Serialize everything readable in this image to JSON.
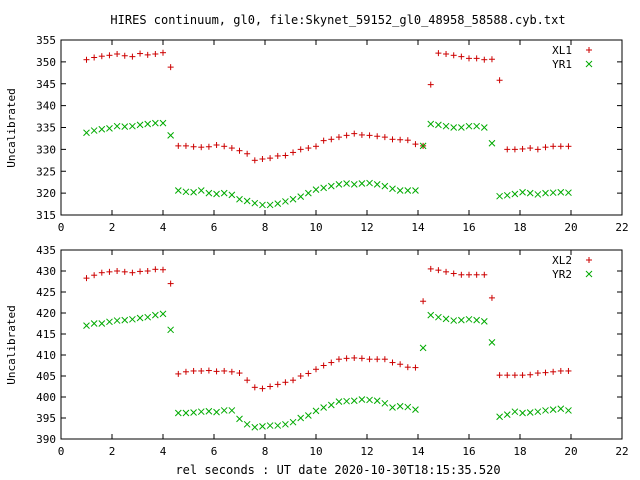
{
  "title": "HIRES continuum, gl0, file:Skynet_59152_gl0_48958_58588.cyb.txt",
  "xlabel": "rel seconds : UT date 2020-10-30T18:15:35.520",
  "chart_data": [
    {
      "type": "scatter",
      "ylabel": "Uncalibrated",
      "xlim": [
        0,
        22
      ],
      "ylim": [
        315,
        355
      ],
      "xticks": [
        0,
        2,
        4,
        6,
        8,
        10,
        12,
        14,
        16,
        18,
        20,
        22
      ],
      "yticks": [
        315,
        320,
        325,
        330,
        335,
        340,
        345,
        350,
        355
      ],
      "legend": "top-right",
      "series": [
        {
          "name": "XL1",
          "marker": "plus",
          "color": "#cc0000",
          "x": [
            1.0,
            1.3,
            1.6,
            1.9,
            2.2,
            2.5,
            2.8,
            3.1,
            3.4,
            3.7,
            4.0,
            4.3,
            4.6,
            4.9,
            5.2,
            5.5,
            5.8,
            6.1,
            6.4,
            6.7,
            7.0,
            7.3,
            7.6,
            7.9,
            8.2,
            8.5,
            8.8,
            9.1,
            9.4,
            9.7,
            10.0,
            10.3,
            10.6,
            10.9,
            11.2,
            11.5,
            11.8,
            12.1,
            12.4,
            12.7,
            13.0,
            13.3,
            13.6,
            13.9,
            14.2,
            14.5,
            14.8,
            15.1,
            15.4,
            15.7,
            16.0,
            16.3,
            16.6,
            16.9,
            17.2,
            17.5,
            17.8,
            18.1,
            18.4,
            18.7,
            19.0,
            19.3,
            19.6,
            19.9
          ],
          "y": [
            350.5,
            351,
            351.3,
            351.5,
            351.8,
            351.4,
            351.2,
            351.9,
            351.6,
            351.8,
            352.1,
            348.8,
            330.8,
            330.8,
            330.6,
            330.5,
            330.6,
            331,
            330.7,
            330.3,
            329.7,
            329,
            327.5,
            327.8,
            328,
            328.5,
            328.6,
            329.3,
            330,
            330.3,
            330.7,
            332,
            332.3,
            332.8,
            333.2,
            333.6,
            333.3,
            333.2,
            333,
            332.8,
            332.3,
            332.2,
            332.1,
            331.2,
            330.8,
            344.8,
            352,
            351.8,
            351.5,
            351.2,
            350.8,
            350.8,
            350.5,
            350.6,
            345.8,
            330,
            330,
            330.1,
            330.3,
            330,
            330.5,
            330.7,
            330.7,
            330.7
          ]
        },
        {
          "name": "YR1",
          "marker": "cross",
          "color": "#00aa00",
          "x": [
            1.0,
            1.3,
            1.6,
            1.9,
            2.2,
            2.5,
            2.8,
            3.1,
            3.4,
            3.7,
            4.0,
            4.3,
            4.6,
            4.9,
            5.2,
            5.5,
            5.8,
            6.1,
            6.4,
            6.7,
            7.0,
            7.3,
            7.6,
            7.9,
            8.2,
            8.5,
            8.8,
            9.1,
            9.4,
            9.7,
            10.0,
            10.3,
            10.6,
            10.9,
            11.2,
            11.5,
            11.8,
            12.1,
            12.4,
            12.7,
            13.0,
            13.3,
            13.6,
            13.9,
            14.2,
            14.5,
            14.8,
            15.1,
            15.4,
            15.7,
            16.0,
            16.3,
            16.6,
            16.9,
            17.2,
            17.5,
            17.8,
            18.1,
            18.4,
            18.7,
            19.0,
            19.3,
            19.6,
            19.9
          ],
          "y": [
            333.8,
            334.3,
            334.6,
            334.8,
            335.3,
            335.2,
            335.3,
            335.6,
            335.8,
            336,
            336,
            333.2,
            320.6,
            320.3,
            320.2,
            320.6,
            320,
            319.8,
            320,
            319.6,
            318.6,
            318.2,
            317.7,
            317.3,
            317.3,
            317.6,
            318.1,
            318.6,
            319.2,
            320,
            320.8,
            321.2,
            321.6,
            322,
            322.2,
            322,
            322.2,
            322.3,
            322,
            321.6,
            321,
            320.6,
            320.6,
            320.6,
            330.8,
            335.8,
            335.6,
            335.3,
            335,
            335,
            335.3,
            335.3,
            335,
            331.4,
            319.3,
            319.5,
            319.8,
            320.2,
            320,
            319.7,
            320,
            320.1,
            320.2,
            320.1
          ]
        }
      ]
    },
    {
      "type": "scatter",
      "ylabel": "Uncalibrated",
      "xlim": [
        0,
        22
      ],
      "ylim": [
        390,
        435
      ],
      "xticks": [
        0,
        2,
        4,
        6,
        8,
        10,
        12,
        14,
        16,
        18,
        20,
        22
      ],
      "yticks": [
        390,
        395,
        400,
        405,
        410,
        415,
        420,
        425,
        430,
        435
      ],
      "legend": "top-right",
      "series": [
        {
          "name": "XL2",
          "marker": "plus",
          "color": "#cc0000",
          "x": [
            1.0,
            1.3,
            1.6,
            1.9,
            2.2,
            2.5,
            2.8,
            3.1,
            3.4,
            3.7,
            4.0,
            4.3,
            4.6,
            4.9,
            5.2,
            5.5,
            5.8,
            6.1,
            6.4,
            6.7,
            7.0,
            7.3,
            7.6,
            7.9,
            8.2,
            8.5,
            8.8,
            9.1,
            9.4,
            9.7,
            10.0,
            10.3,
            10.6,
            10.9,
            11.2,
            11.5,
            11.8,
            12.1,
            12.4,
            12.7,
            13.0,
            13.3,
            13.6,
            13.9,
            14.2,
            14.5,
            14.8,
            15.1,
            15.4,
            15.7,
            16.0,
            16.3,
            16.6,
            16.9,
            17.2,
            17.5,
            17.8,
            18.1,
            18.4,
            18.7,
            19.0,
            19.3,
            19.6,
            19.9
          ],
          "y": [
            428.3,
            429,
            429.6,
            429.8,
            430,
            429.8,
            429.6,
            429.9,
            430,
            430.4,
            430.3,
            427,
            405.5,
            406,
            406.2,
            406.2,
            406.3,
            406.1,
            406.2,
            406,
            405.7,
            404,
            402.3,
            402,
            402.5,
            403,
            403.5,
            404,
            405,
            405.6,
            406.6,
            407.5,
            408.2,
            409,
            409.2,
            409.3,
            409.2,
            409,
            409,
            409,
            408.2,
            407.8,
            407.1,
            407,
            422.8,
            430.5,
            430.2,
            429.8,
            429.4,
            429.1,
            429.1,
            429.1,
            429.1,
            423.6,
            405.2,
            405.2,
            405.2,
            405.2,
            405.3,
            405.7,
            405.8,
            406,
            406.2,
            406.2
          ]
        },
        {
          "name": "YR2",
          "marker": "cross",
          "color": "#00aa00",
          "x": [
            1.0,
            1.3,
            1.6,
            1.9,
            2.2,
            2.5,
            2.8,
            3.1,
            3.4,
            3.7,
            4.0,
            4.3,
            4.6,
            4.9,
            5.2,
            5.5,
            5.8,
            6.1,
            6.4,
            6.7,
            7.0,
            7.3,
            7.6,
            7.9,
            8.2,
            8.5,
            8.8,
            9.1,
            9.4,
            9.7,
            10.0,
            10.3,
            10.6,
            10.9,
            11.2,
            11.5,
            11.8,
            12.1,
            12.4,
            12.7,
            13.0,
            13.3,
            13.6,
            13.9,
            14.2,
            14.5,
            14.8,
            15.1,
            15.4,
            15.7,
            16.0,
            16.3,
            16.6,
            16.9,
            17.2,
            17.5,
            17.8,
            18.1,
            18.4,
            18.7,
            19.0,
            19.3,
            19.6,
            19.9
          ],
          "y": [
            417,
            417.5,
            417.5,
            417.9,
            418.2,
            418.3,
            418.5,
            418.8,
            419,
            419.5,
            419.8,
            416,
            396.2,
            396.2,
            396.3,
            396.5,
            396.6,
            396.4,
            396.8,
            396.8,
            394.8,
            393.5,
            392.8,
            393,
            393.2,
            393.2,
            393.5,
            394,
            395,
            395.6,
            396.7,
            397.5,
            398.1,
            398.9,
            399,
            399.1,
            399.4,
            399.3,
            399.1,
            398.5,
            397.5,
            397.8,
            397.6,
            397,
            411.7,
            419.5,
            419,
            418.6,
            418.2,
            418.3,
            418.5,
            418.3,
            418,
            413,
            395.3,
            395.8,
            396.5,
            396.2,
            396.3,
            396.5,
            396.8,
            397,
            397.2,
            396.8
          ]
        }
      ]
    }
  ]
}
